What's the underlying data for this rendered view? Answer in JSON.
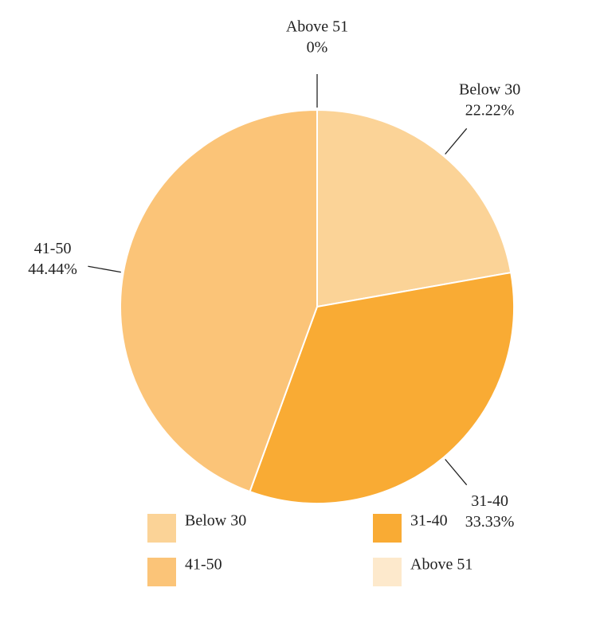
{
  "chart_data": {
    "type": "pie",
    "categories": [
      "Below 30",
      "31-40",
      "41-50",
      "Above 51"
    ],
    "values": [
      22.22,
      33.33,
      44.44,
      0
    ],
    "value_labels": [
      "22.22%",
      "33.33%",
      "44.44%",
      "0%"
    ],
    "colors": [
      "#fbd397",
      "#f9ab34",
      "#fbc478",
      "#fde9cc"
    ],
    "legend": "bottom"
  }
}
